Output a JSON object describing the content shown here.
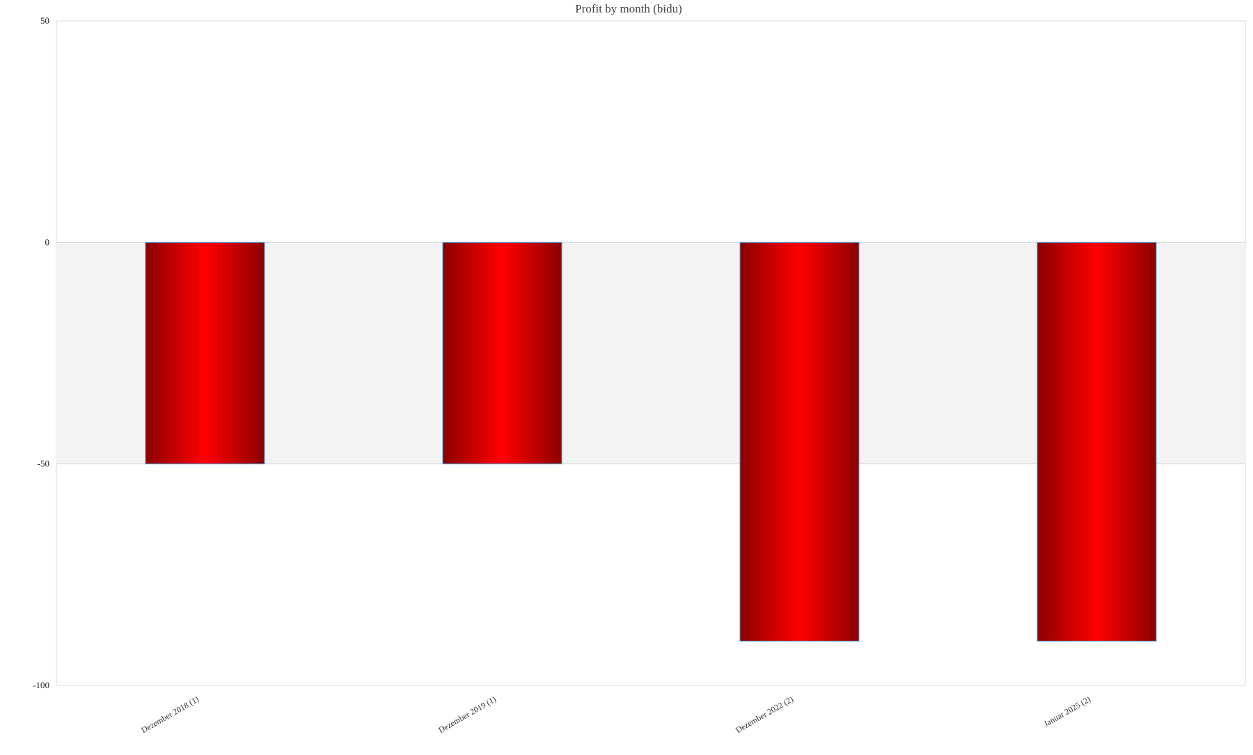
{
  "chart_data": {
    "type": "bar",
    "title": "Profit by month  (bidu)",
    "xlabel": "",
    "ylabel": "",
    "categories": [
      "Dezember 2018 (1)",
      "Dezember 2019 (1)",
      "Dezember 2022 (2)",
      "Januar 2025 (2)"
    ],
    "values": [
      -50,
      -50,
      -90,
      -90
    ],
    "ylim": [
      -100,
      50
    ],
    "yticks": [
      50,
      0,
      -50,
      -100
    ],
    "grid": true,
    "legend": "none",
    "colors": {
      "bar_edge": "#8b0000",
      "bar_center": "#ff0000",
      "bar_border": "#4aa3df",
      "band": "#f3f3f3",
      "axis": "#d8d8d8"
    }
  }
}
